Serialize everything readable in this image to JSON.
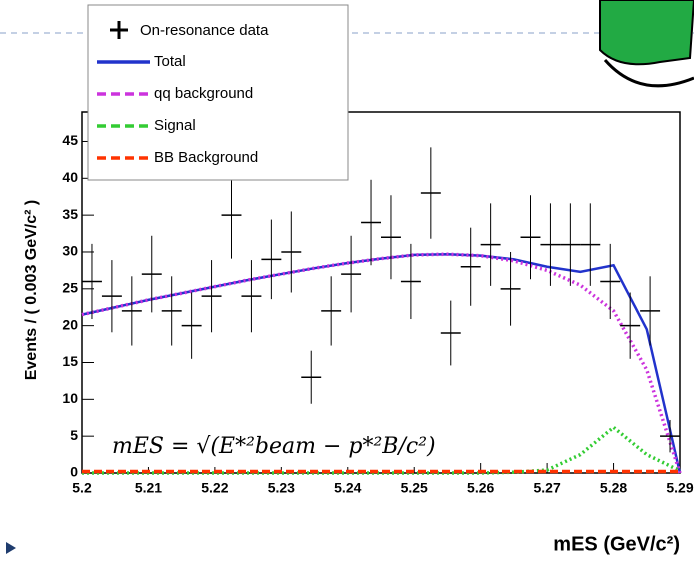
{
  "chart_data": {
    "type": "fit",
    "y_label": "Events / ( 0.003 GeV/c² )",
    "x_label": "mES (GeV/c²)",
    "annotation": "mES = √(E*²beam − p*²B/c²)",
    "xlim": [
      5.2,
      5.29
    ],
    "xticks": [
      5.2,
      5.21,
      5.22,
      5.23,
      5.24,
      5.25,
      5.26,
      5.27,
      5.28,
      5.29
    ],
    "ylim": [
      0,
      49
    ],
    "yticks": [
      0,
      5,
      10,
      15,
      20,
      25,
      30,
      35,
      40,
      45
    ],
    "points": {
      "name": "On-resonance data",
      "color": "#000000",
      "x": [
        5.2015,
        5.2045,
        5.2075,
        5.2105,
        5.2135,
        5.2165,
        5.2195,
        5.2225,
        5.2255,
        5.2285,
        5.2315,
        5.2345,
        5.2375,
        5.2405,
        5.2435,
        5.2465,
        5.2495,
        5.2525,
        5.2555,
        5.2585,
        5.2615,
        5.2645,
        5.2675,
        5.2705,
        5.2735,
        5.2765,
        5.2795,
        5.2825,
        5.2855,
        5.2885
      ],
      "values": [
        26,
        24,
        22,
        27,
        22,
        20,
        24,
        35,
        24,
        29,
        30,
        13,
        22,
        27,
        34,
        32,
        26,
        38,
        19,
        28,
        31,
        25,
        32,
        31,
        31,
        31,
        26,
        20,
        22,
        5
      ],
      "errors": [
        5.1,
        4.9,
        4.7,
        5.2,
        4.7,
        4.5,
        4.9,
        5.9,
        4.9,
        5.4,
        5.5,
        3.6,
        4.7,
        5.2,
        5.8,
        5.7,
        5.1,
        6.2,
        4.4,
        5.3,
        5.6,
        5,
        5.7,
        5.6,
        5.6,
        5.6,
        5.1,
        4.5,
        4.7,
        2.2
      ]
    },
    "x": [
      5.2,
      5.205,
      5.21,
      5.215,
      5.22,
      5.225,
      5.23,
      5.235,
      5.24,
      5.245,
      5.25,
      5.255,
      5.26,
      5.265,
      5.27,
      5.275,
      5.28,
      5.285,
      5.29
    ],
    "series": [
      {
        "name": "Total",
        "color": "#2233cc",
        "dash": "solid",
        "values": [
          21.5,
          22.5,
          23.5,
          24.4,
          25.3,
          26.2,
          27,
          27.8,
          28.5,
          29.1,
          29.6,
          29.7,
          29.5,
          29,
          28,
          27.3,
          28.2,
          19.5,
          0
        ]
      },
      {
        "name": "qq background",
        "color": "#cc33dd",
        "dash": "dotted",
        "values": [
          21.5,
          22.5,
          23.5,
          24.4,
          25.3,
          26.2,
          27,
          27.8,
          28.5,
          29.1,
          29.6,
          29.7,
          29.5,
          28.8,
          27.5,
          25.5,
          22,
          14,
          0
        ]
      },
      {
        "name": "Signal",
        "color": "#33cc33",
        "dash": "dotted",
        "values": [
          0,
          0,
          0,
          0,
          0,
          0,
          0,
          0,
          0,
          0,
          0,
          0,
          0,
          0.1,
          0.4,
          2.5,
          6.2,
          2.5,
          0.3
        ]
      },
      {
        "name": "BB Background",
        "color": "#ff3300",
        "dash": "dashed",
        "values": [
          0.2,
          0.2,
          0.2,
          0.2,
          0.2,
          0.2,
          0.2,
          0.2,
          0.2,
          0.2,
          0.2,
          0.2,
          0.2,
          0.2,
          0.2,
          0.2,
          0.2,
          0.2,
          0.2
        ]
      }
    ]
  }
}
